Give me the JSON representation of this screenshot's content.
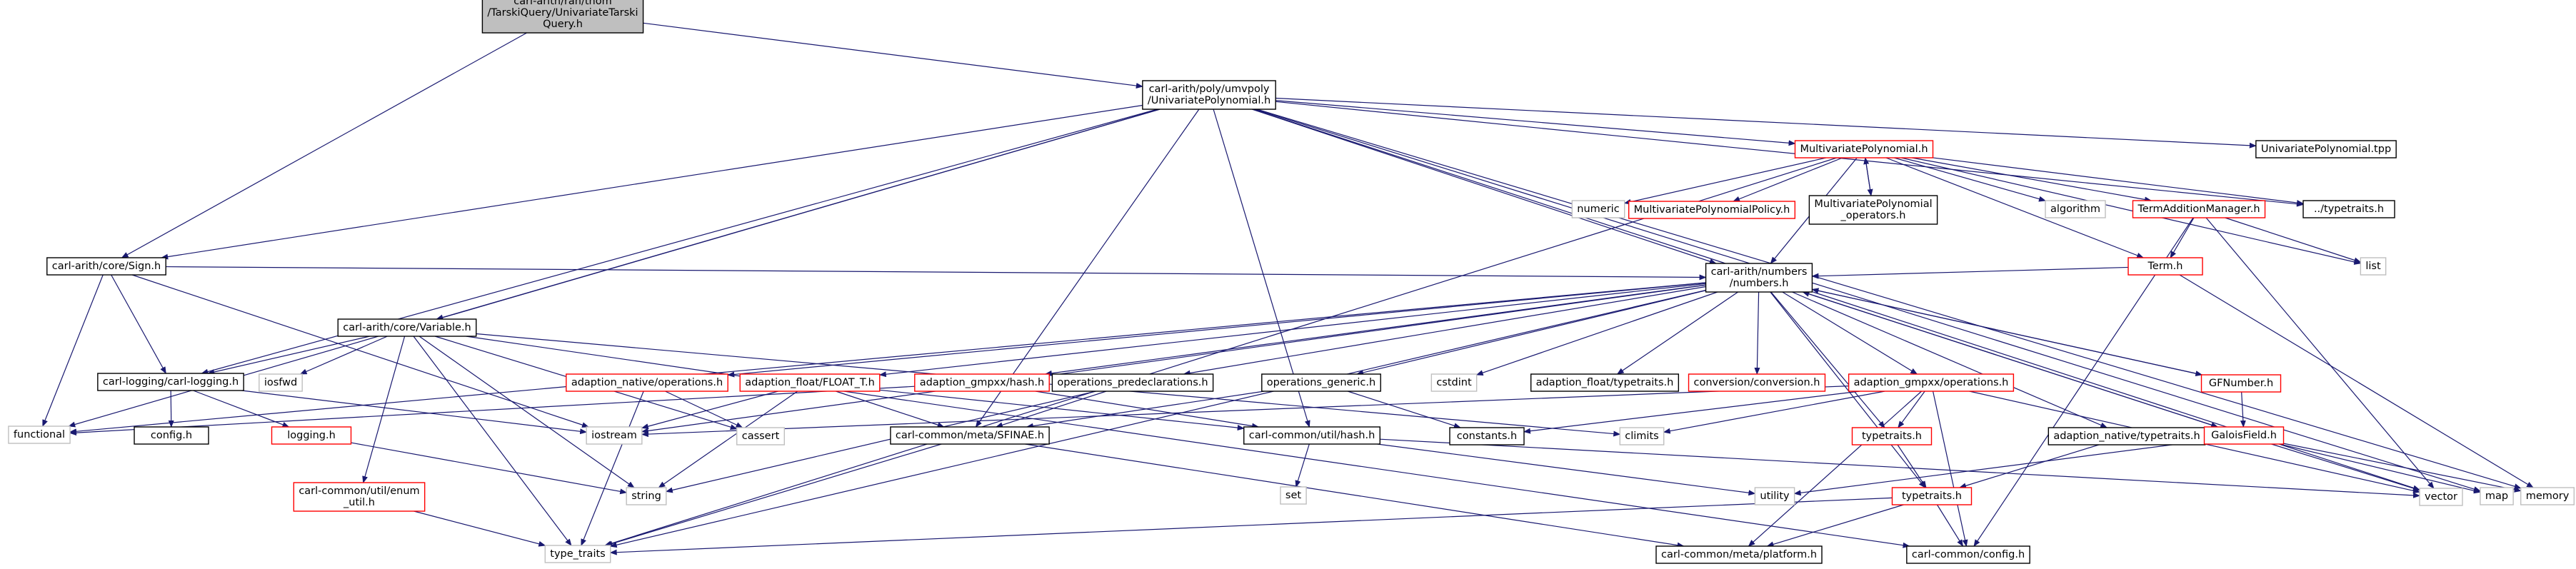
{
  "colors": {
    "edge": "#191970",
    "box_black": "#000000",
    "box_red": "#ff0000",
    "box_gray": "#bfbfbf",
    "fill_root": "#bfbfbf",
    "fill_default": "#ffffff"
  },
  "nodes": [
    {
      "id": "root",
      "lines": [
        "carl-arith/ran/thom",
        "/TarskiQuery/UnivariateTarski",
        "Query.h"
      ],
      "style": "root"
    },
    {
      "id": "univpoly",
      "lines": [
        "carl-arith/poly/umvpoly",
        "/UnivariatePolynomial.h"
      ],
      "style": "black"
    },
    {
      "id": "sign",
      "lines": [
        "carl-arith/core/Sign.h"
      ],
      "style": "black"
    },
    {
      "id": "functional",
      "lines": [
        "functional"
      ],
      "style": "gray"
    },
    {
      "id": "carllogging",
      "lines": [
        "carl-logging/carl-logging.h"
      ],
      "style": "black"
    },
    {
      "id": "iostream",
      "lines": [
        "iostream"
      ],
      "style": "gray"
    },
    {
      "id": "numbers",
      "lines": [
        "carl-arith/numbers",
        "/numbers.h"
      ],
      "style": "black"
    },
    {
      "id": "variable",
      "lines": [
        "carl-arith/core/Variable.h"
      ],
      "style": "black"
    },
    {
      "id": "multivar",
      "lines": [
        "MultivariatePolynomial.h"
      ],
      "style": "red"
    },
    {
      "id": "sfinae",
      "lines": [
        "carl-common/meta/SFINAE.h"
      ],
      "style": "black"
    },
    {
      "id": "hash",
      "lines": [
        "carl-common/util/hash.h"
      ],
      "style": "black"
    },
    {
      "id": "univtpp",
      "lines": [
        "UnivariatePolynomial.tpp"
      ],
      "style": "black"
    },
    {
      "id": "typetraits_rel",
      "lines": [
        "../typetraits.h"
      ],
      "style": "black"
    },
    {
      "id": "vector",
      "lines": [
        "vector"
      ],
      "style": "gray"
    },
    {
      "id": "map",
      "lines": [
        "map"
      ],
      "style": "gray"
    },
    {
      "id": "memory",
      "lines": [
        "memory"
      ],
      "style": "gray"
    },
    {
      "id": "numeric",
      "lines": [
        "numeric"
      ],
      "style": "gray"
    },
    {
      "id": "mvpolicy",
      "lines": [
        "MultivariatePolynomialPolicy.h"
      ],
      "style": "red"
    },
    {
      "id": "mvoperators",
      "lines": [
        "MultivariatePolynomial",
        "_operators.h"
      ],
      "style": "black"
    },
    {
      "id": "algorithm",
      "lines": [
        "algorithm"
      ],
      "style": "gray"
    },
    {
      "id": "termadd",
      "lines": [
        "TermAdditionManager.h"
      ],
      "style": "red"
    },
    {
      "id": "term",
      "lines": [
        "Term.h"
      ],
      "style": "red"
    },
    {
      "id": "list",
      "lines": [
        "list"
      ],
      "style": "gray"
    },
    {
      "id": "config",
      "lines": [
        "config.h"
      ],
      "style": "black"
    },
    {
      "id": "logging",
      "lines": [
        "logging.h"
      ],
      "style": "red"
    },
    {
      "id": "string",
      "lines": [
        "string"
      ],
      "style": "gray"
    },
    {
      "id": "enumutil",
      "lines": [
        "carl-common/util/enum",
        "_util.h"
      ],
      "style": "red"
    },
    {
      "id": "typetraits_std",
      "lines": [
        "type_traits"
      ],
      "style": "gray"
    },
    {
      "id": "iosfwd",
      "lines": [
        "iosfwd"
      ],
      "style": "gray"
    },
    {
      "id": "cassert",
      "lines": [
        "cassert"
      ],
      "style": "gray"
    },
    {
      "id": "nativeops",
      "lines": [
        "adaption_native/operations.h"
      ],
      "style": "red"
    },
    {
      "id": "floatT",
      "lines": [
        "adaption_float/FLOAT_T.h"
      ],
      "style": "red"
    },
    {
      "id": "gmpxxhash",
      "lines": [
        "adaption_gmpxx/hash.h"
      ],
      "style": "red"
    },
    {
      "id": "opspredecl",
      "lines": [
        "operations_predeclarations.h"
      ],
      "style": "black"
    },
    {
      "id": "opsgeneric",
      "lines": [
        "operations_generic.h"
      ],
      "style": "black"
    },
    {
      "id": "cstdint",
      "lines": [
        "cstdint"
      ],
      "style": "gray"
    },
    {
      "id": "floattypetraits",
      "lines": [
        "adaption_float/typetraits.h"
      ],
      "style": "black"
    },
    {
      "id": "conversion",
      "lines": [
        "conversion/conversion.h"
      ],
      "style": "red"
    },
    {
      "id": "gmpxxops",
      "lines": [
        "adaption_gmpxx/operations.h"
      ],
      "style": "red"
    },
    {
      "id": "nativetypetraits",
      "lines": [
        "adaption_native/typetraits.h"
      ],
      "style": "black"
    },
    {
      "id": "gfnumber",
      "lines": [
        "GFNumber.h"
      ],
      "style": "red"
    },
    {
      "id": "galoisfield",
      "lines": [
        "GaloisField.h"
      ],
      "style": "red"
    },
    {
      "id": "climits",
      "lines": [
        "climits"
      ],
      "style": "gray"
    },
    {
      "id": "constants",
      "lines": [
        "constants.h"
      ],
      "style": "black"
    },
    {
      "id": "typetraits_red1",
      "lines": [
        "typetraits.h"
      ],
      "style": "red"
    },
    {
      "id": "typetraits_red2",
      "lines": [
        "typetraits.h"
      ],
      "style": "red"
    },
    {
      "id": "utility",
      "lines": [
        "utility"
      ],
      "style": "gray"
    },
    {
      "id": "set",
      "lines": [
        "set"
      ],
      "style": "gray"
    },
    {
      "id": "platform",
      "lines": [
        "carl-common/meta/platform.h"
      ],
      "style": "black"
    },
    {
      "id": "commonconfig",
      "lines": [
        "carl-common/config.h"
      ],
      "style": "black"
    }
  ]
}
